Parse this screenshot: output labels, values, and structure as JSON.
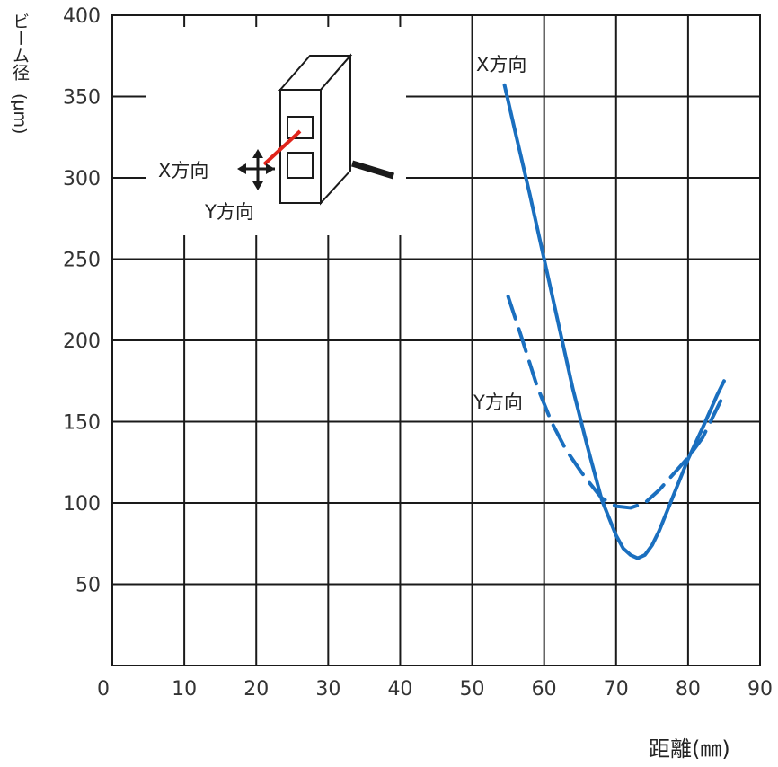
{
  "chart_data": {
    "type": "line",
    "xlabel": "距離(㎜)",
    "ylabel_lines": [
      "ビーム径",
      "(μm)"
    ],
    "xlim": [
      0,
      90
    ],
    "ylim": [
      0,
      400
    ],
    "x_ticks": [
      0,
      10,
      20,
      30,
      40,
      50,
      60,
      70,
      80,
      90
    ],
    "y_ticks": [
      50,
      100,
      150,
      200,
      250,
      300,
      350,
      400
    ],
    "grid": true,
    "series": [
      {
        "name": "X方向",
        "style": "solid",
        "color": "#1a6fbf",
        "points": [
          [
            54.5,
            357
          ],
          [
            56,
            328
          ],
          [
            58,
            290
          ],
          [
            60,
            250
          ],
          [
            62,
            210
          ],
          [
            64,
            170
          ],
          [
            66,
            135
          ],
          [
            68,
            102
          ],
          [
            70,
            80
          ],
          [
            71,
            72
          ],
          [
            72,
            68
          ],
          [
            73,
            66
          ],
          [
            74,
            68
          ],
          [
            75,
            74
          ],
          [
            76,
            83
          ],
          [
            78,
            105
          ],
          [
            80,
            127
          ],
          [
            82,
            146
          ],
          [
            84,
            166
          ],
          [
            85,
            175
          ]
        ]
      },
      {
        "name": "Y方向",
        "style": "dashed",
        "color": "#1a6fbf",
        "points": [
          [
            55,
            227
          ],
          [
            57,
            200
          ],
          [
            59,
            172
          ],
          [
            61,
            150
          ],
          [
            63,
            133
          ],
          [
            65,
            120
          ],
          [
            66,
            114
          ],
          [
            68,
            103
          ],
          [
            70,
            98
          ],
          [
            72,
            97
          ],
          [
            74,
            100
          ],
          [
            76,
            108
          ],
          [
            78,
            118
          ],
          [
            80,
            128
          ],
          [
            82,
            140
          ],
          [
            84,
            158
          ],
          [
            85,
            167
          ]
        ]
      }
    ],
    "annotations": {
      "x_curve_label": "X方向",
      "y_curve_label": "Y方向",
      "inset_x_label": "X方向",
      "inset_y_label": "Y方向"
    }
  }
}
